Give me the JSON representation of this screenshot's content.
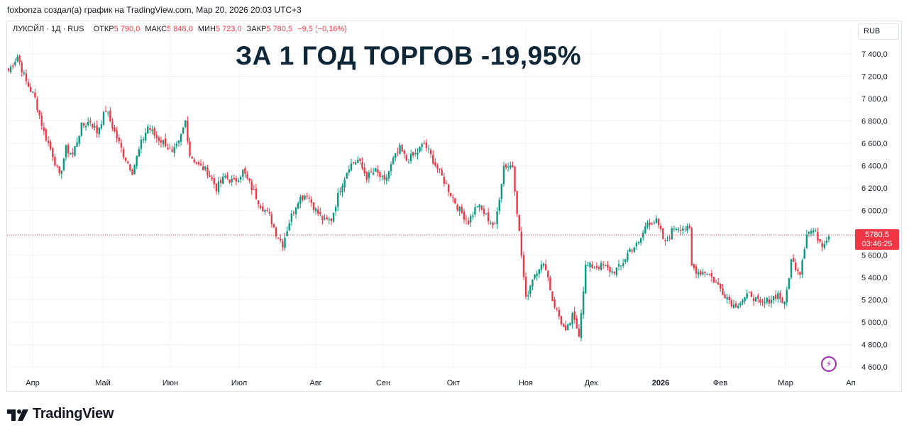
{
  "header": {
    "attribution": "foxbonza создал(а) график на TradingView.com, Мар 20, 2026 20:03 UTC+3"
  },
  "legend": {
    "symbol": "ЛУКОЙЛ · 1Д · RUS",
    "open_label": "ОТКР",
    "open_value": "5 790,0",
    "high_label": "МАКС",
    "high_value": "5 848,0",
    "low_label": "МИН",
    "low_value": "5 723,0",
    "close_label": "ЗАКР",
    "close_value": "5 780,5",
    "change": "−9,5 (−0,16%)"
  },
  "currency": "RUB",
  "headline": "ЗА 1 ГОД ТОРГОВ -19,95%",
  "price_tag": {
    "price": "5780,5",
    "countdown": "03:46:25"
  },
  "brand": {
    "name": "TradingView"
  },
  "colors": {
    "up": "#089981",
    "down": "#f23645",
    "grid": "#f0f3fa",
    "text": "#131722",
    "headline": "#0e2738"
  },
  "icons": {
    "alert": "lightning-icon",
    "logo": "tradingview-logo-icon"
  },
  "chart_data": {
    "type": "candlestick",
    "y_ticks": [
      "7 400,0",
      "7 200,0",
      "7 000,0",
      "6 800,0",
      "6 600,0",
      "6 400,0",
      "6 200,0",
      "6 000,0",
      "5 600,0",
      "5 400,0",
      "5 200,0",
      "5 000,0",
      "4 800,0",
      "4 600,0"
    ],
    "x_ticks": [
      "Апр",
      "Май",
      "Июн",
      "Июл",
      "Авг",
      "Сен",
      "Окт",
      "Ноя",
      "Дек",
      "2026",
      "Фев",
      "Мар",
      "Ап"
    ],
    "ylim": [
      4550,
      7480
    ],
    "last_price": 5780.5,
    "anchors": [
      [
        0,
        7250
      ],
      [
        4,
        7380
      ],
      [
        8,
        7150
      ],
      [
        12,
        7000
      ],
      [
        16,
        6700
      ],
      [
        20,
        6500
      ],
      [
        23,
        6300
      ],
      [
        26,
        6550
      ],
      [
        29,
        6500
      ],
      [
        33,
        6750
      ],
      [
        37,
        6800
      ],
      [
        40,
        6700
      ],
      [
        44,
        6900
      ],
      [
        48,
        6700
      ],
      [
        52,
        6500
      ],
      [
        56,
        6350
      ],
      [
        60,
        6600
      ],
      [
        63,
        6750
      ],
      [
        67,
        6650
      ],
      [
        71,
        6600
      ],
      [
        74,
        6500
      ],
      [
        77,
        6600
      ],
      [
        80,
        6800
      ],
      [
        82,
        6500
      ],
      [
        86,
        6400
      ],
      [
        90,
        6350
      ],
      [
        94,
        6200
      ],
      [
        98,
        6300
      ],
      [
        102,
        6250
      ],
      [
        106,
        6350
      ],
      [
        110,
        6200
      ],
      [
        114,
        6050
      ],
      [
        118,
        5950
      ],
      [
        121,
        5800
      ],
      [
        124,
        5700
      ],
      [
        127,
        5900
      ],
      [
        131,
        6100
      ],
      [
        135,
        6150
      ],
      [
        139,
        6000
      ],
      [
        143,
        5900
      ],
      [
        146,
        5920
      ],
      [
        150,
        6200
      ],
      [
        154,
        6400
      ],
      [
        158,
        6450
      ],
      [
        162,
        6300
      ],
      [
        166,
        6350
      ],
      [
        170,
        6250
      ],
      [
        174,
        6450
      ],
      [
        177,
        6550
      ],
      [
        180,
        6450
      ],
      [
        184,
        6500
      ],
      [
        188,
        6600
      ],
      [
        192,
        6450
      ],
      [
        196,
        6300
      ],
      [
        200,
        6150
      ],
      [
        204,
        6000
      ],
      [
        208,
        5900
      ],
      [
        212,
        6050
      ],
      [
        216,
        5950
      ],
      [
        220,
        5850
      ],
      [
        224,
        6400
      ],
      [
        228,
        6400
      ],
      [
        231,
        5800
      ],
      [
        234,
        5200
      ],
      [
        237,
        5400
      ],
      [
        240,
        5500
      ],
      [
        243,
        5500
      ],
      [
        246,
        5200
      ],
      [
        249,
        5050
      ],
      [
        252,
        4900
      ],
      [
        255,
        5050
      ],
      [
        258,
        4900
      ],
      [
        261,
        5500
      ],
      [
        265,
        5500
      ],
      [
        269,
        5500
      ],
      [
        273,
        5450
      ],
      [
        277,
        5500
      ],
      [
        281,
        5650
      ],
      [
        285,
        5700
      ],
      [
        289,
        5900
      ],
      [
        293,
        5900
      ],
      [
        297,
        5700
      ],
      [
        301,
        5850
      ],
      [
        305,
        5850
      ],
      [
        308,
        5820
      ],
      [
        309,
        5500
      ],
      [
        312,
        5450
      ],
      [
        316,
        5450
      ],
      [
        320,
        5350
      ],
      [
        324,
        5250
      ],
      [
        328,
        5150
      ],
      [
        332,
        5200
      ],
      [
        336,
        5250
      ],
      [
        340,
        5150
      ],
      [
        344,
        5200
      ],
      [
        348,
        5250
      ],
      [
        351,
        5150
      ],
      [
        354,
        5550
      ],
      [
        358,
        5450
      ],
      [
        361,
        5800
      ],
      [
        364,
        5820
      ],
      [
        368,
        5700
      ],
      [
        371,
        5780
      ]
    ]
  }
}
